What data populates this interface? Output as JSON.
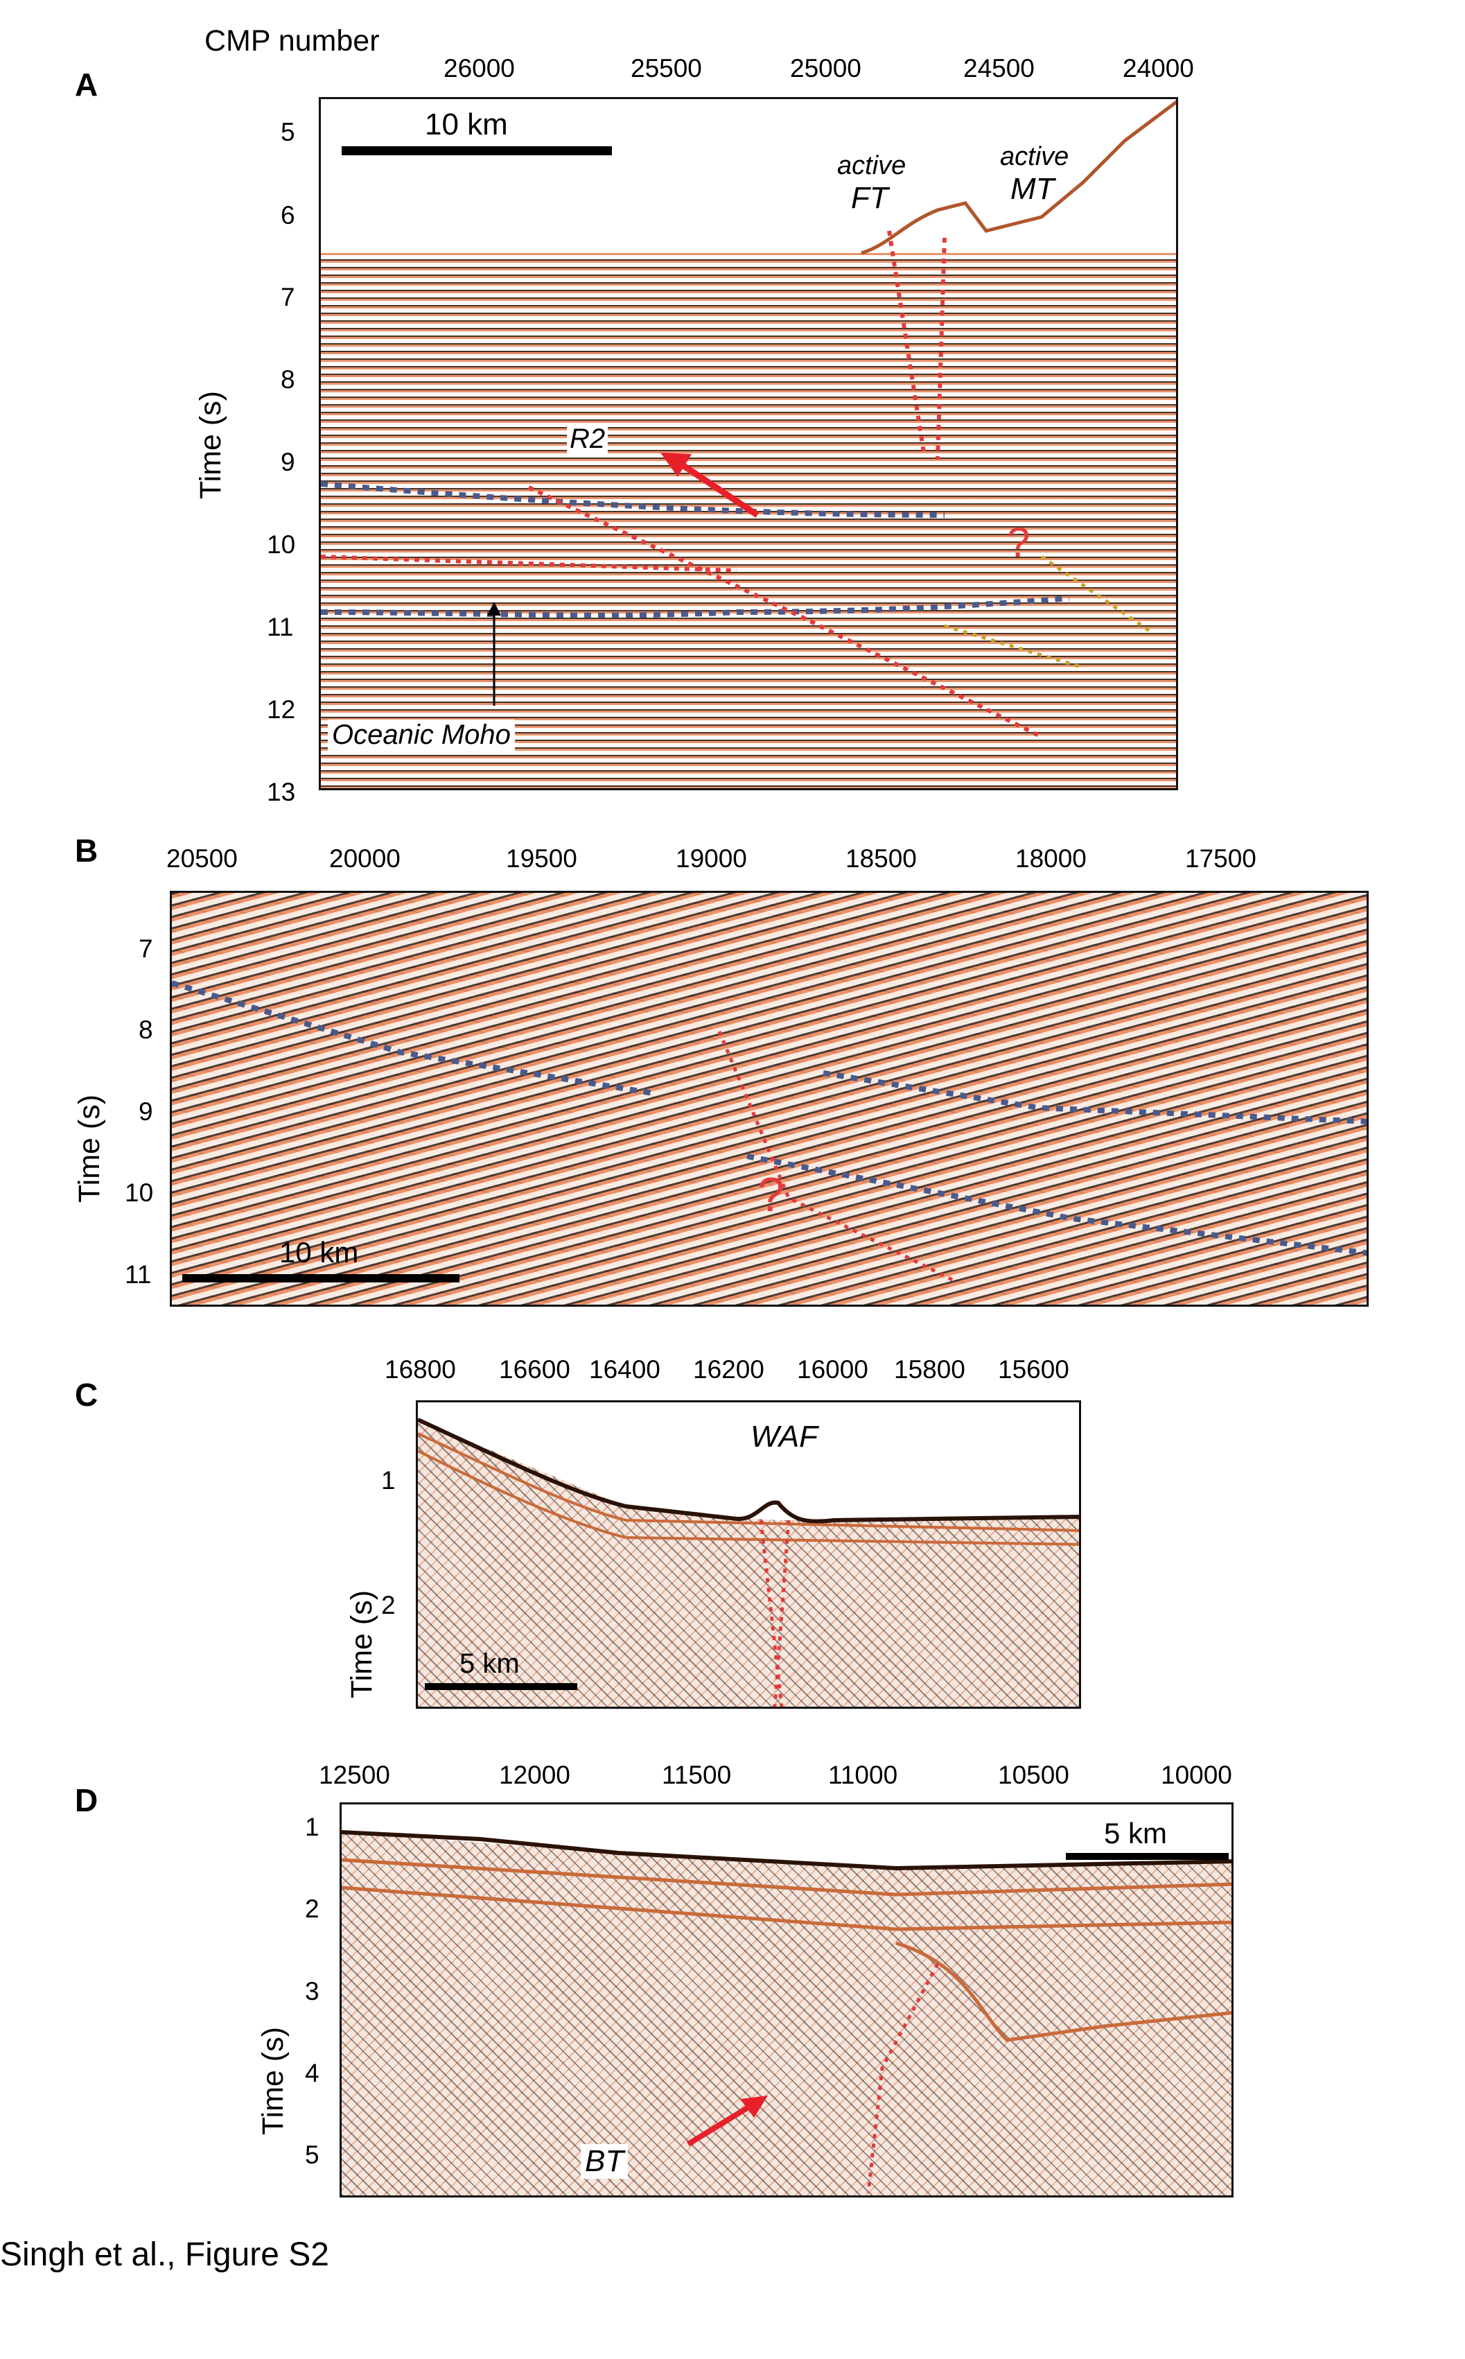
{
  "caption": "Singh et al., Figure S2",
  "panels": {
    "A": {
      "label": "A",
      "top_label": "CMP number",
      "x_ticks": [
        "26000",
        "25500",
        "25000",
        "24500",
        "24000"
      ],
      "y_ticks": [
        "5",
        "6",
        "7",
        "8",
        "9",
        "10",
        "11",
        "12",
        "13"
      ],
      "ylabel": "Time (s)",
      "scale": "10 km",
      "annotations": {
        "active1": "active",
        "ft": "FT",
        "active2": "active",
        "mt": "MT",
        "r2": "R2",
        "question": "?",
        "moho": "Oceanic Moho"
      }
    },
    "B": {
      "label": "B",
      "x_ticks": [
        "20500",
        "20000",
        "19500",
        "19000",
        "18500",
        "18000",
        "17500"
      ],
      "y_ticks": [
        "7",
        "8",
        "9",
        "10",
        "11"
      ],
      "ylabel": "Time (s)",
      "scale": "10 km",
      "annotations": {
        "question": "?"
      }
    },
    "C": {
      "label": "C",
      "x_ticks": [
        "16800",
        "16600",
        "16400",
        "16200",
        "16000",
        "15800",
        "15600"
      ],
      "y_ticks": [
        "1",
        "2"
      ],
      "ylabel": "Time (s)",
      "scale": "5 km",
      "annotations": {
        "waf": "WAF"
      }
    },
    "D": {
      "label": "D",
      "x_ticks": [
        "12500",
        "12000",
        "11500",
        "11000",
        "10500",
        "10000"
      ],
      "y_ticks": [
        "1",
        "2",
        "3",
        "4",
        "5"
      ],
      "ylabel": "Time (s)",
      "scale": "5 km",
      "annotations": {
        "bt": "BT"
      }
    }
  },
  "colors": {
    "fault_red": "#e23b3b",
    "reflector_blue": "#4a5a8c",
    "reflector_yellow": "#c9a227",
    "arrow_red": "#e8202a"
  }
}
